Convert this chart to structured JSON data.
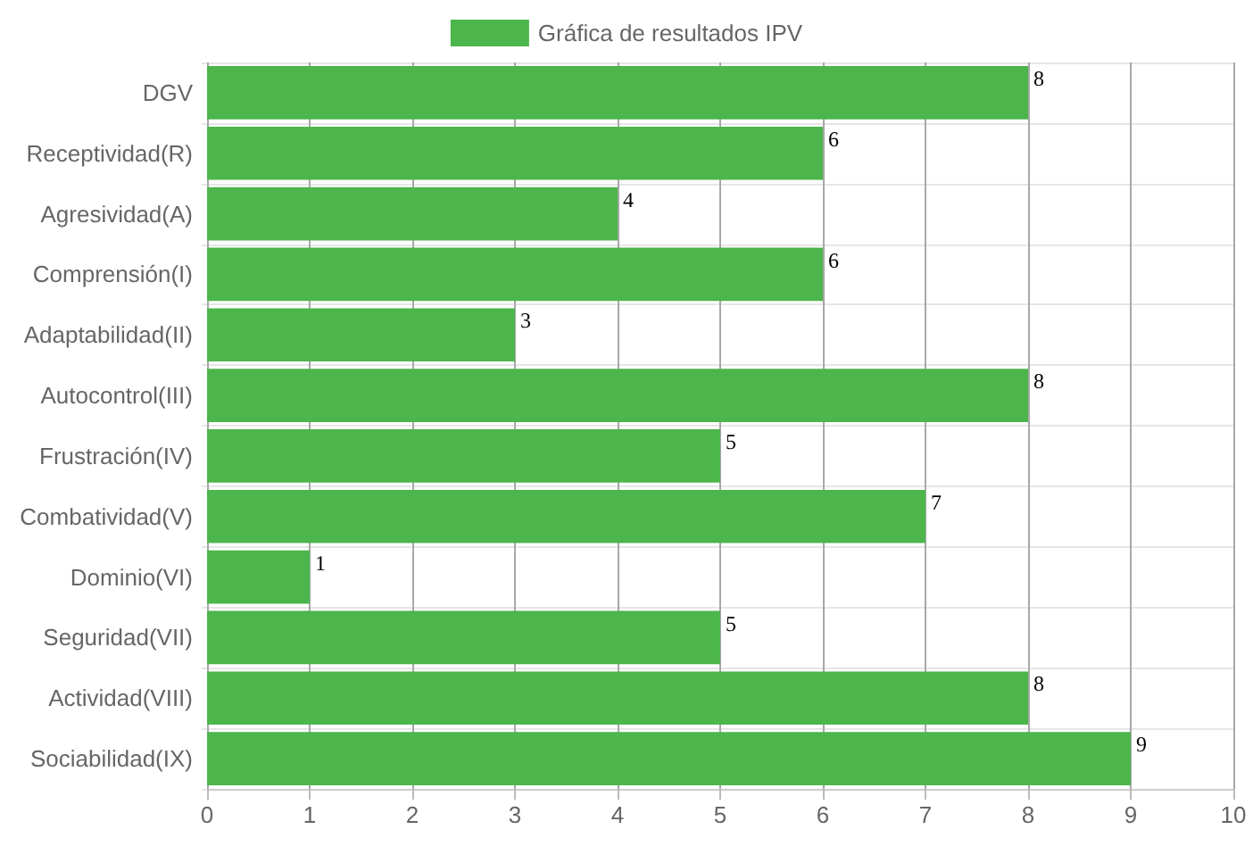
{
  "chart_data": {
    "type": "bar",
    "orientation": "horizontal",
    "categories": [
      "DGV",
      "Receptividad(R)",
      "Agresividad(A)",
      "Comprensión(I)",
      "Adaptabilidad(II)",
      "Autocontrol(III)",
      "Frustración(IV)",
      "Combatividad(V)",
      "Dominio(VI)",
      "Seguridad(VII)",
      "Actividad(VIII)",
      "Sociabilidad(IX)"
    ],
    "series": [
      {
        "name": "Gráfica de resultados IPV",
        "color": "#4cb54c",
        "values": [
          8,
          6,
          4,
          6,
          3,
          8,
          5,
          7,
          1,
          5,
          8,
          9
        ]
      }
    ],
    "xlim": [
      0,
      10
    ],
    "xticks": [
      0,
      1,
      2,
      3,
      4,
      5,
      6,
      7,
      8,
      9,
      10
    ],
    "grid": true,
    "legend": "top",
    "data_labels": true
  }
}
